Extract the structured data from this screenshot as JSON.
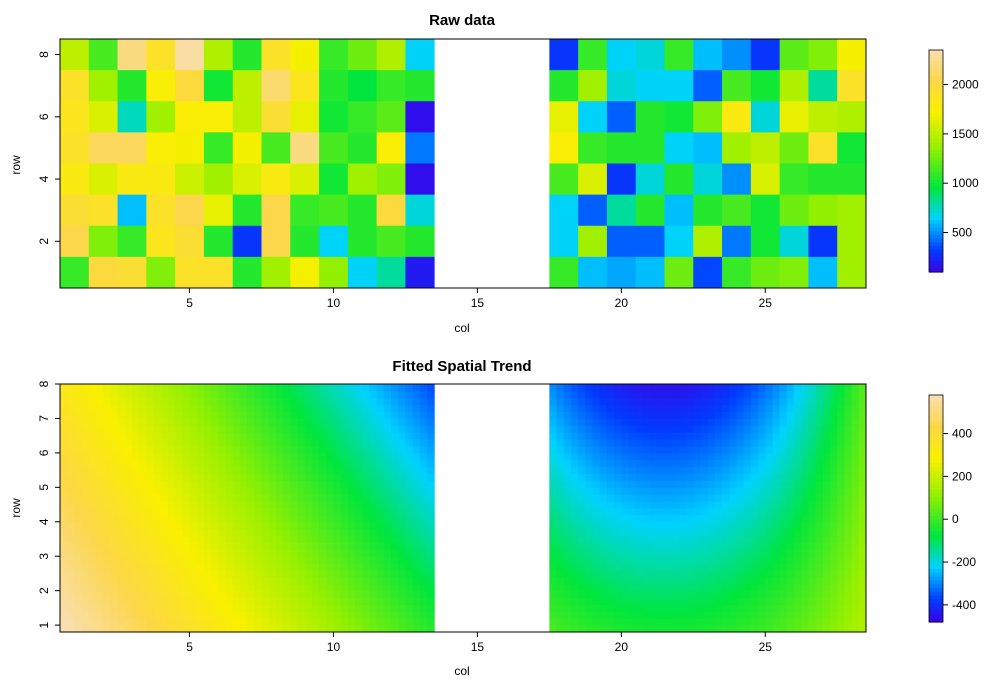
{
  "chart_data": [
    {
      "type": "heatmap",
      "title": "Raw data",
      "xlabel": "col",
      "ylabel": "row",
      "xlim": [
        0.5,
        28.5
      ],
      "ylim": [
        0.5,
        8.5
      ],
      "x_ticks": [
        5,
        10,
        15,
        20,
        25
      ],
      "y_ticks": [
        2,
        4,
        6,
        8
      ],
      "columns": [
        1,
        2,
        3,
        4,
        5,
        6,
        7,
        8,
        9,
        10,
        11,
        12,
        13,
        14,
        15,
        16,
        17,
        18,
        19,
        20,
        21,
        22,
        23,
        24,
        25,
        26,
        27,
        28
      ],
      "rows": [
        8,
        7,
        6,
        5,
        4,
        3,
        2,
        1
      ],
      "missing_columns": [
        14,
        15,
        16,
        17
      ],
      "values": [
        [
          1500,
          1150,
          2200,
          1900,
          2300,
          1450,
          1050,
          1900,
          1700,
          1100,
          1250,
          1450,
          650,
          null,
          null,
          null,
          null,
          300,
          1100,
          650,
          700,
          1100,
          600,
          500,
          300,
          1200,
          1300,
          1700
        ],
        [
          1900,
          1400,
          1050,
          1750,
          2000,
          1000,
          1500,
          2150,
          1850,
          1050,
          950,
          1100,
          1050,
          null,
          null,
          null,
          null,
          1050,
          1400,
          700,
          650,
          650,
          400,
          1150,
          1000,
          1450,
          800,
          1900
        ],
        [
          1850,
          1600,
          750,
          1400,
          1750,
          1750,
          1500,
          1950,
          1650,
          1000,
          1100,
          1200,
          150,
          null,
          null,
          null,
          null,
          1650,
          650,
          400,
          1050,
          1000,
          1300,
          1800,
          700,
          1650,
          1500,
          1450
        ],
        [
          1900,
          2100,
          2100,
          1750,
          1700,
          1100,
          1700,
          1150,
          2200,
          1150,
          1050,
          1750,
          450,
          null,
          null,
          null,
          null,
          1750,
          1100,
          1050,
          1050,
          650,
          600,
          1400,
          1500,
          1250,
          1900,
          1000
        ],
        [
          1800,
          1600,
          1800,
          1800,
          1550,
          1400,
          1600,
          1800,
          1600,
          1000,
          1400,
          1300,
          150,
          null,
          null,
          null,
          null,
          1150,
          1600,
          300,
          700,
          1050,
          700,
          500,
          1600,
          1100,
          1050,
          1050
        ],
        [
          1950,
          1900,
          600,
          1900,
          2050,
          1650,
          1050,
          2050,
          1100,
          1150,
          1050,
          2000,
          700,
          null,
          null,
          null,
          null,
          650,
          400,
          800,
          1050,
          600,
          1050,
          1150,
          1000,
          1250,
          1350,
          1400
        ],
        [
          2050,
          1300,
          1100,
          1850,
          1950,
          1050,
          300,
          2050,
          1050,
          650,
          1050,
          1150,
          1050,
          null,
          null,
          null,
          null,
          650,
          1400,
          400,
          400,
          650,
          1450,
          450,
          1000,
          700,
          300,
          1400
        ],
        [
          1100,
          2000,
          1950,
          1300,
          1900,
          1900,
          1050,
          1400,
          1700,
          1350,
          650,
          800,
          200,
          null,
          null,
          null,
          null,
          1100,
          600,
          550,
          600,
          1250,
          350,
          1100,
          1250,
          1300,
          600,
          1400
        ]
      ],
      "colorbar": {
        "ticks": [
          500,
          1000,
          1500,
          2000
        ],
        "min": 100,
        "max": 2350
      }
    },
    {
      "type": "heatmap",
      "title": "Fitted Spatial Trend",
      "xlabel": "col",
      "ylabel": "row",
      "xlim": [
        0.5,
        28.5
      ],
      "ylim": [
        0.8,
        8.0
      ],
      "x_ticks": [
        5,
        10,
        15,
        20,
        25
      ],
      "y_ticks": [
        1,
        2,
        3,
        4,
        5,
        6,
        7,
        8
      ],
      "missing_columns": [
        14,
        15,
        16,
        17
      ],
      "colorbar": {
        "ticks": [
          400,
          200,
          0,
          -200,
          -400
        ],
        "min": -480,
        "max": 580
      }
    }
  ]
}
